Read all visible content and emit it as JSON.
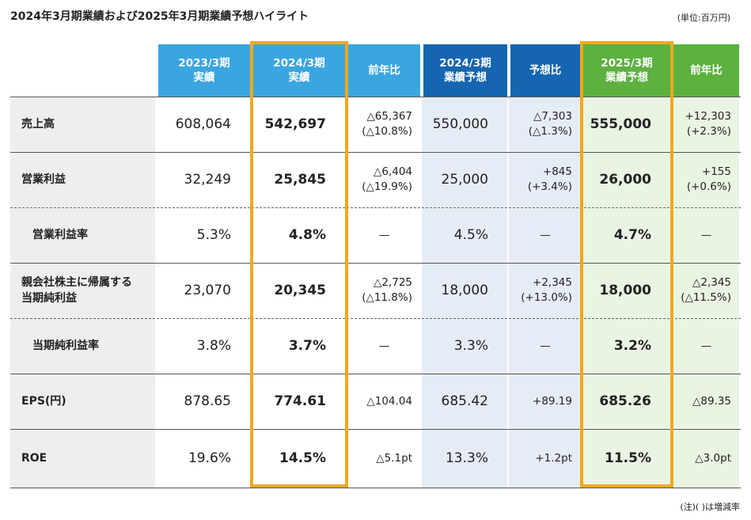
{
  "title": "2024年3月期業績および2025年3月期業績予想ハイライト",
  "unit": "(単位:百万円)",
  "note": "(注)(  )は増減率",
  "colors": {
    "light_blue": "#3aa6e0",
    "dark_blue": "#1565b0",
    "green": "#5cb13f",
    "orange_frame": "#f0a81c",
    "label_bg": "#eeeeee",
    "plan_bg": "#e6ecf6",
    "green_bg": "#eaf4e3"
  },
  "headers": [
    {
      "line1": "2023/3期",
      "line2": "実績"
    },
    {
      "line1": "2024/3期",
      "line2": "実績"
    },
    {
      "line1": "前年比",
      "line2": ""
    },
    {
      "line1": "2024/3期",
      "line2": "業績予想"
    },
    {
      "line1": "予想比",
      "line2": ""
    },
    {
      "line1": "2025/3期",
      "line2": "業績予想"
    },
    {
      "line1": "前年比",
      "line2": ""
    }
  ],
  "rows": [
    {
      "label1": "売上高",
      "label2": "",
      "cells": [
        {
          "l1": "608,064",
          "l2": ""
        },
        {
          "l1": "542,697",
          "l2": ""
        },
        {
          "l1": "△65,367",
          "l2": "(△10.8%)"
        },
        {
          "l1": "550,000",
          "l2": ""
        },
        {
          "l1": "△7,303",
          "l2": "(△1.3%)"
        },
        {
          "l1": "555,000",
          "l2": ""
        },
        {
          "l1": "+12,303",
          "l2": "(+2.3%)"
        }
      ]
    },
    {
      "label1": "営業利益",
      "label2": "",
      "cells": [
        {
          "l1": "32,249",
          "l2": ""
        },
        {
          "l1": "25,845",
          "l2": ""
        },
        {
          "l1": "△6,404",
          "l2": "(△19.9%)"
        },
        {
          "l1": "25,000",
          "l2": ""
        },
        {
          "l1": "+845",
          "l2": "(+3.4%)"
        },
        {
          "l1": "26,000",
          "l2": ""
        },
        {
          "l1": "+155",
          "l2": "(+0.6%)"
        }
      ]
    },
    {
      "label1": "営業利益率",
      "label2": "",
      "cells": [
        {
          "l1": "5.3%",
          "l2": ""
        },
        {
          "l1": "4.8%",
          "l2": ""
        },
        {
          "l1": "—",
          "l2": ""
        },
        {
          "l1": "4.5%",
          "l2": ""
        },
        {
          "l1": "—",
          "l2": ""
        },
        {
          "l1": "4.7%",
          "l2": ""
        },
        {
          "l1": "—",
          "l2": ""
        }
      ]
    },
    {
      "label1": "親会社株主に帰属する",
      "label2": "当期純利益",
      "cells": [
        {
          "l1": "23,070",
          "l2": ""
        },
        {
          "l1": "20,345",
          "l2": ""
        },
        {
          "l1": "△2,725",
          "l2": "(△11.8%)"
        },
        {
          "l1": "18,000",
          "l2": ""
        },
        {
          "l1": "+2,345",
          "l2": "(+13.0%)"
        },
        {
          "l1": "18,000",
          "l2": ""
        },
        {
          "l1": "△2,345",
          "l2": "(△11.5%)"
        }
      ]
    },
    {
      "label1": "当期純利益率",
      "label2": "",
      "cells": [
        {
          "l1": "3.8%",
          "l2": ""
        },
        {
          "l1": "3.7%",
          "l2": ""
        },
        {
          "l1": "—",
          "l2": ""
        },
        {
          "l1": "3.3%",
          "l2": ""
        },
        {
          "l1": "—",
          "l2": ""
        },
        {
          "l1": "3.2%",
          "l2": ""
        },
        {
          "l1": "—",
          "l2": ""
        }
      ]
    },
    {
      "label1": "EPS(円)",
      "label2": "",
      "cells": [
        {
          "l1": "878.65",
          "l2": ""
        },
        {
          "l1": "774.61",
          "l2": ""
        },
        {
          "l1": "△104.04",
          "l2": ""
        },
        {
          "l1": "685.42",
          "l2": ""
        },
        {
          "l1": "+89.19",
          "l2": ""
        },
        {
          "l1": "685.26",
          "l2": ""
        },
        {
          "l1": "△89.35",
          "l2": ""
        }
      ]
    },
    {
      "label1": "ROE",
      "label2": "",
      "cells": [
        {
          "l1": "19.6%",
          "l2": ""
        },
        {
          "l1": "14.5%",
          "l2": ""
        },
        {
          "l1": "△5.1pt",
          "l2": ""
        },
        {
          "l1": "13.3%",
          "l2": ""
        },
        {
          "l1": "+1.2pt",
          "l2": ""
        },
        {
          "l1": "11.5%",
          "l2": ""
        },
        {
          "l1": "△3.0pt",
          "l2": ""
        }
      ]
    }
  ]
}
